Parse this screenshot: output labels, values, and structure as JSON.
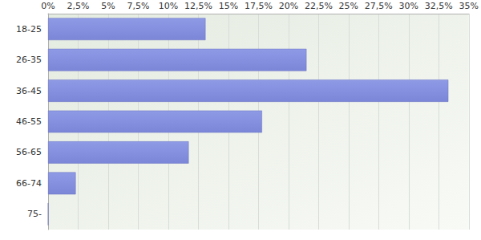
{
  "chart_data": {
    "type": "bar",
    "orientation": "horizontal",
    "categories": [
      "18-25",
      "26-35",
      "36-45",
      "46-55",
      "56-65",
      "66-74",
      "75-"
    ],
    "values": [
      13.1,
      21.5,
      33.3,
      17.8,
      11.7,
      2.3,
      0
    ],
    "color": "#7b86d8",
    "xlim": [
      0,
      35
    ],
    "xticks": [
      {
        "value": 0,
        "label": "0%"
      },
      {
        "value": 2.5,
        "label": "2,5%"
      },
      {
        "value": 5,
        "label": "5%"
      },
      {
        "value": 7.5,
        "label": "7,5%"
      },
      {
        "value": 10,
        "label": "10%"
      },
      {
        "value": 12.5,
        "label": "12,5%"
      },
      {
        "value": 15,
        "label": "15%"
      },
      {
        "value": 17.5,
        "label": "17,5%"
      },
      {
        "value": 20,
        "label": "20%"
      },
      {
        "value": 22.5,
        "label": "22,5%"
      },
      {
        "value": 25,
        "label": "25%"
      },
      {
        "value": 27.5,
        "label": "27,5%"
      },
      {
        "value": 30,
        "label": "30%"
      },
      {
        "value": 32.5,
        "label": "32,5%"
      },
      {
        "value": 35,
        "label": "35%"
      }
    ],
    "grid": true
  }
}
